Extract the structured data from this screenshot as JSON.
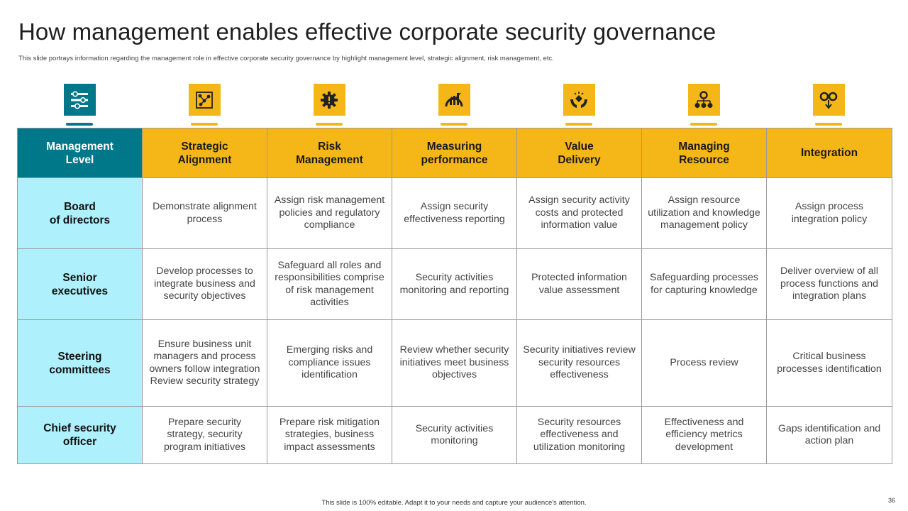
{
  "title": "How management enables effective corporate security governance",
  "subtitle": "This slide portrays information regarding the management  role in effective corporate security governance by highlight management level, strategic alignment, risk management, etc.",
  "colors": {
    "teal": "#00788a",
    "yellow": "#f5b718",
    "light_cyan": "#aef0fb"
  },
  "icons": [
    "settings-list-icon",
    "strategy-chart-icon",
    "gear-alert-icon",
    "performance-chart-icon",
    "value-hands-icon",
    "resource-gear-icon",
    "integration-gears-icon"
  ],
  "table": {
    "corner": "Management\nLevel",
    "columns": [
      "Strategic\nAlignment",
      "Risk\nManagement",
      "Measuring\nperformance",
      "Value\nDelivery",
      "Managing\nResource",
      "Integration"
    ],
    "rows": [
      {
        "label": "Board\nof directors",
        "cells": [
          "Demonstrate alignment process",
          "Assign risk management policies and regulatory compliance",
          "Assign security effectiveness reporting",
          "Assign security activity costs and protected information value",
          "Assign resource utilization and knowledge management policy",
          "Assign process integration policy"
        ]
      },
      {
        "label": "Senior\nexecutives",
        "cells": [
          "Develop processes to integrate business and security  objectives",
          "Safeguard all roles and responsibilities comprise of risk management activities",
          "Security activities monitoring and reporting",
          "Protected information value assessment",
          "Safeguarding processes for capturing knowledge",
          "Deliver overview of all process functions and integration plans"
        ]
      },
      {
        "label": "Steering\ncommittees",
        "cells": [
          "Ensure business unit managers and process owners follow integration\nReview security strategy",
          "Emerging risks and compliance issues identification",
          "Review whether security initiatives  meet business objectives",
          "Security initiatives review security resources effectiveness",
          "Process review",
          "Critical business processes identification"
        ]
      },
      {
        "label": "Chief security\nofficer",
        "cells": [
          "Prepare security strategy, security program initiatives",
          "Prepare risk mitigation strategies, business impact assessments",
          "Security activities monitoring",
          "Security resources effectiveness and utilization monitoring",
          "Effectiveness and efficiency metrics development",
          "Gaps identification  and action plan"
        ]
      }
    ]
  },
  "footer": "This slide is 100% editable. Adapt it to your needs and capture your audience's attention.",
  "page_number": "36"
}
